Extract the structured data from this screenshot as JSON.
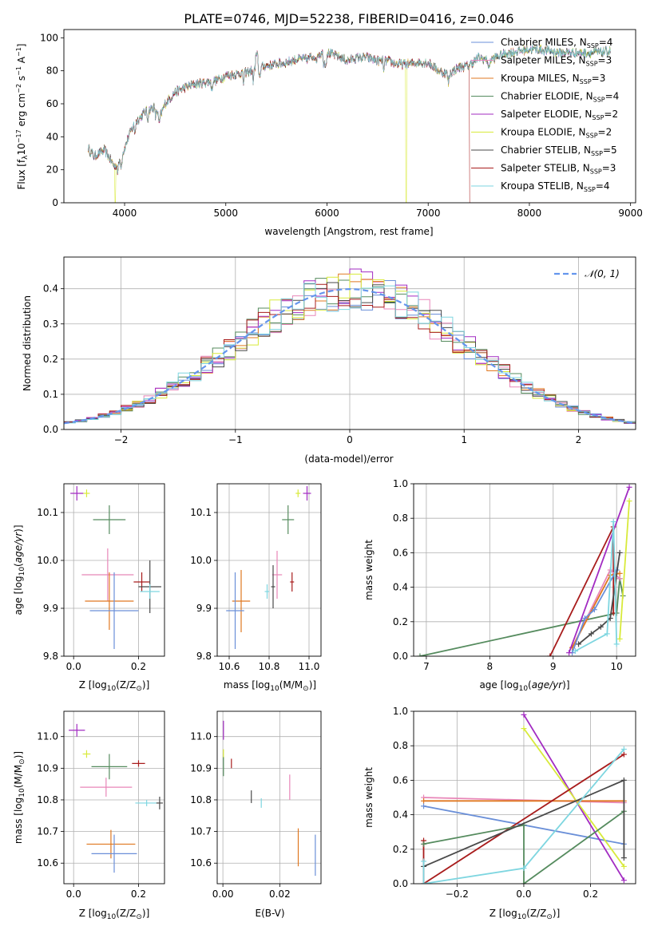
{
  "title": "PLATE=0746, MJD=52238, FIBERID=0416, z=0.046",
  "colors": {
    "chabrier_miles": "#6a8fd8",
    "salpeter_miles": "#e886b8",
    "kroupa_miles": "#e07820",
    "chabrier_elodie": "#558b5e",
    "salpeter_elodie": "#a22bc2",
    "kroupa_elodie": "#d8ea3a",
    "chabrier_stelib": "#4a4a4a",
    "salpeter_stelib": "#a81c1c",
    "kroupa_stelib": "#7ed6e0",
    "normal": "#6495ed",
    "grid": "#b0b0b0"
  },
  "chart_data": [
    {
      "type": "line",
      "name": "spectrum",
      "title": "PLATE=0746, MJD=52238, FIBERID=0416, z=0.046",
      "xlabel": "wavelength [Angstrom, rest frame]",
      "ylabel_parts": [
        "Flux [f",
        "λ",
        "10",
        "−17",
        " erg cm",
        "−2",
        " s",
        "−1",
        " A",
        "−1",
        "]"
      ],
      "xlim": [
        3400,
        9050
      ],
      "ylim": [
        0,
        105
      ],
      "xticks": [
        4000,
        5000,
        6000,
        7000,
        8000,
        9000
      ],
      "yticks": [
        0,
        20,
        40,
        60,
        80,
        100
      ],
      "legend": "upper right, no frame",
      "legend_entries": [
        {
          "label": "Chabrier MILES, N",
          "sub": "SSP",
          "suffix": "=4",
          "color": "#6a8fd8"
        },
        {
          "label": "Salpeter MILES, N",
          "sub": "SSP",
          "suffix": "=3",
          "color": "#e886b8"
        },
        {
          "label": "Kroupa MILES, N",
          "sub": "SSP",
          "suffix": "=3",
          "color": "#e07820"
        },
        {
          "label": "Chabrier ELODIE, N",
          "sub": "SSP",
          "suffix": "=4",
          "color": "#558b5e"
        },
        {
          "label": "Salpeter ELODIE, N",
          "sub": "SSP",
          "suffix": "=2",
          "color": "#a22bc2"
        },
        {
          "label": "Kroupa ELODIE, N",
          "sub": "SSP",
          "suffix": "=2",
          "color": "#d8ea3a"
        },
        {
          "label": "Chabrier STELIB, N",
          "sub": "SSP",
          "suffix": "=5",
          "color": "#4a4a4a"
        },
        {
          "label": "Salpeter STELIB, N",
          "sub": "SSP",
          "suffix": "=3",
          "color": "#a81c1c"
        },
        {
          "label": "Kroupa STELIB, N",
          "sub": "SSP",
          "suffix": "=4",
          "color": "#7ed6e0"
        }
      ],
      "continuum": [
        [
          3640,
          33
        ],
        [
          3700,
          28
        ],
        [
          3750,
          30
        ],
        [
          3800,
          32
        ],
        [
          3850,
          27
        ],
        [
          3900,
          22
        ],
        [
          3950,
          25
        ],
        [
          4000,
          33
        ],
        [
          4050,
          42
        ],
        [
          4100,
          48
        ],
        [
          4200,
          55
        ],
        [
          4300,
          58
        ],
        [
          4350,
          52
        ],
        [
          4400,
          60
        ],
        [
          4500,
          67
        ],
        [
          4600,
          70
        ],
        [
          4700,
          72
        ],
        [
          4800,
          73
        ],
        [
          4900,
          74
        ],
        [
          5000,
          77
        ],
        [
          5100,
          78
        ],
        [
          5200,
          79
        ],
        [
          5300,
          81
        ],
        [
          5400,
          83
        ],
        [
          5500,
          84
        ],
        [
          5600,
          85
        ],
        [
          5700,
          87
        ],
        [
          5800,
          87
        ],
        [
          5900,
          90
        ],
        [
          6000,
          91
        ],
        [
          6100,
          89
        ],
        [
          6200,
          86
        ],
        [
          6300,
          88
        ],
        [
          6400,
          88
        ],
        [
          6500,
          86
        ],
        [
          6600,
          86
        ],
        [
          6700,
          84
        ],
        [
          6800,
          84
        ],
        [
          6900,
          85
        ],
        [
          7000,
          85
        ],
        [
          7100,
          80
        ],
        [
          7200,
          78
        ],
        [
          7300,
          82
        ],
        [
          7400,
          83
        ],
        [
          7500,
          88
        ],
        [
          7600,
          86
        ],
        [
          7700,
          89
        ],
        [
          7800,
          91
        ],
        [
          7900,
          92
        ],
        [
          8000,
          93
        ],
        [
          8100,
          93
        ],
        [
          8200,
          92
        ],
        [
          8300,
          91
        ],
        [
          8400,
          91
        ],
        [
          8500,
          91
        ],
        [
          8600,
          91
        ],
        [
          8700,
          91
        ],
        [
          8800,
          92
        ]
      ],
      "dropouts": [
        {
          "x": 3905,
          "series": "kroupa_elodie"
        },
        {
          "x": 6780,
          "series": "kroupa_elodie"
        },
        {
          "x": 7410,
          "series": "salpeter_stelib",
          "extends_to": 7420
        }
      ]
    },
    {
      "type": "histogram",
      "name": "residuals",
      "xlabel": "(data-model)/error",
      "ylabel": "Normed distribution",
      "xlim": [
        -2.5,
        2.5
      ],
      "ylim": [
        0,
        0.49
      ],
      "xticks": [
        -2,
        -1,
        0,
        1,
        2
      ],
      "yticks": [
        0.0,
        0.1,
        0.2,
        0.3,
        0.4
      ],
      "legend": "upper right",
      "legend_label": "𝒩(0, 1)",
      "grid": true,
      "bin_width": 0.1
    },
    {
      "type": "scatter",
      "name": "age-vs-Z",
      "xlabel": "Z [log10(Z/Z⊙)]",
      "ylabel": "age  [log10(age/yr)]",
      "xlim": [
        -0.03,
        0.28
      ],
      "ylim": [
        9.8,
        10.16
      ],
      "xticks": [
        0.0,
        0.2
      ],
      "yticks": [
        9.8,
        9.9,
        10.0,
        10.1
      ],
      "grid": true,
      "points": [
        {
          "s": "salpeter_elodie",
          "x": 0.01,
          "y": 10.14,
          "xe": 0.02,
          "ye": 0.015
        },
        {
          "s": "kroupa_elodie",
          "x": 0.04,
          "y": 10.14,
          "xe": 0.01,
          "ye": 0.008
        },
        {
          "s": "chabrier_elodie",
          "x": 0.11,
          "y": 10.085,
          "xe": 0.05,
          "ye": 0.03
        },
        {
          "s": "salpeter_miles",
          "x": 0.105,
          "y": 9.97,
          "xe": 0.08,
          "ye": 0.055
        },
        {
          "s": "salpeter_stelib",
          "x": 0.21,
          "y": 9.955,
          "xe": 0.025,
          "ye": 0.02
        },
        {
          "s": "chabrier_stelib",
          "x": 0.235,
          "y": 9.945,
          "xe": 0.035,
          "ye": 0.055
        },
        {
          "s": "kroupa_stelib",
          "x": 0.235,
          "y": 9.935,
          "xe": 0.03,
          "ye": 0.015
        },
        {
          "s": "kroupa_miles",
          "x": 0.11,
          "y": 9.915,
          "xe": 0.075,
          "ye": 0.06
        },
        {
          "s": "chabrier_miles",
          "x": 0.125,
          "y": 9.895,
          "xe": 0.075,
          "ye": 0.08
        }
      ]
    },
    {
      "type": "scatter",
      "name": "age-vs-mass",
      "xlabel": "mass [log10(M/M⊙)]",
      "xlim": [
        10.54,
        11.06
      ],
      "ylim": [
        9.8,
        10.16
      ],
      "xticks": [
        10.6,
        10.8,
        11.0
      ],
      "yticks": [
        9.8,
        9.9,
        10.0,
        10.1
      ],
      "grid": true,
      "points": [
        {
          "s": "salpeter_elodie",
          "x": 10.99,
          "y": 10.14,
          "xe": 0.02,
          "ye": 0.015
        },
        {
          "s": "kroupa_elodie",
          "x": 10.945,
          "y": 10.14,
          "xe": 0.012,
          "ye": 0.008
        },
        {
          "s": "chabrier_elodie",
          "x": 10.895,
          "y": 10.085,
          "xe": 0.03,
          "ye": 0.03
        },
        {
          "s": "salpeter_miles",
          "x": 10.84,
          "y": 9.97,
          "xe": 0.025,
          "ye": 0.05
        },
        {
          "s": "salpeter_stelib",
          "x": 10.915,
          "y": 9.955,
          "xe": 0.01,
          "ye": 0.02
        },
        {
          "s": "chabrier_stelib",
          "x": 10.82,
          "y": 9.945,
          "xe": 0.01,
          "ye": 0.045
        },
        {
          "s": "kroupa_stelib",
          "x": 10.79,
          "y": 9.935,
          "xe": 0.012,
          "ye": 0.015
        },
        {
          "s": "kroupa_miles",
          "x": 10.66,
          "y": 9.915,
          "xe": 0.045,
          "ye": 0.065
        },
        {
          "s": "chabrier_miles",
          "x": 10.63,
          "y": 9.895,
          "xe": 0.045,
          "ye": 0.08
        }
      ]
    },
    {
      "type": "line",
      "name": "weight-vs-age",
      "xlabel": "age  [log10(age/yr)]",
      "ylabel": "mass weight",
      "xlim": [
        6.8,
        10.3
      ],
      "ylim": [
        0,
        1.0
      ],
      "xticks": [
        7,
        8,
        9,
        10
      ],
      "yticks": [
        0.0,
        0.2,
        0.4,
        0.6,
        0.8,
        1.0
      ],
      "grid": true,
      "series": [
        {
          "s": "chabrier_elodie",
          "pts": [
            [
              6.9,
              0.0
            ],
            [
              10.0,
              0.25
            ],
            [
              10.05,
              0.45
            ],
            [
              10.1,
              0.35
            ]
          ]
        },
        {
          "s": "salpeter_stelib",
          "pts": [
            [
              8.95,
              0.0
            ],
            [
              9.95,
              0.75
            ],
            [
              9.95,
              0.25
            ]
          ]
        },
        {
          "s": "salpeter_miles",
          "pts": [
            [
              9.3,
              0.05
            ],
            [
              9.9,
              0.5
            ],
            [
              10.05,
              0.45
            ]
          ]
        },
        {
          "s": "kroupa_miles",
          "pts": [
            [
              9.3,
              0.05
            ],
            [
              9.9,
              0.47
            ],
            [
              10.05,
              0.48
            ]
          ]
        },
        {
          "s": "chabrier_miles",
          "pts": [
            [
              9.3,
              0.02
            ],
            [
              9.5,
              0.22
            ],
            [
              9.65,
              0.27
            ],
            [
              10.0,
              0.5
            ]
          ]
        },
        {
          "s": "salpeter_elodie",
          "pts": [
            [
              9.25,
              0.02
            ],
            [
              10.2,
              0.98
            ]
          ]
        },
        {
          "s": "kroupa_elodie",
          "pts": [
            [
              10.05,
              0.1
            ],
            [
              10.2,
              0.9
            ]
          ]
        },
        {
          "s": "chabrier_stelib",
          "pts": [
            [
              9.4,
              0.07
            ],
            [
              9.6,
              0.13
            ],
            [
              9.75,
              0.17
            ],
            [
              9.9,
              0.22
            ],
            [
              10.05,
              0.6
            ]
          ]
        },
        {
          "s": "kroupa_stelib",
          "pts": [
            [
              9.35,
              0.03
            ],
            [
              9.85,
              0.13
            ],
            [
              9.95,
              0.78
            ],
            [
              10.0,
              0.07
            ]
          ]
        }
      ]
    },
    {
      "type": "scatter",
      "name": "mass-vs-Z",
      "xlabel": "Z [log10(Z/Z⊙)]",
      "ylabel": "mass [log10(M/M⊙)]",
      "xlim": [
        -0.03,
        0.28
      ],
      "ylim": [
        10.535,
        11.08
      ],
      "xticks": [
        0.0,
        0.2
      ],
      "yticks": [
        10.6,
        10.7,
        10.8,
        10.9,
        11.0
      ],
      "grid": true,
      "points": [
        {
          "s": "salpeter_elodie",
          "x": 0.01,
          "y": 11.02,
          "xe": 0.025,
          "ye": 0.02
        },
        {
          "s": "kroupa_elodie",
          "x": 0.04,
          "y": 10.945,
          "xe": 0.012,
          "ye": 0.012
        },
        {
          "s": "chabrier_elodie",
          "x": 0.11,
          "y": 10.905,
          "xe": 0.055,
          "ye": 0.04
        },
        {
          "s": "salpeter_stelib",
          "x": 0.2,
          "y": 10.915,
          "xe": 0.02,
          "ye": 0.01
        },
        {
          "s": "salpeter_miles",
          "x": 0.1,
          "y": 10.84,
          "xe": 0.08,
          "ye": 0.03
        },
        {
          "s": "kroupa_stelib",
          "x": 0.225,
          "y": 10.79,
          "xe": 0.035,
          "ye": 0.01
        },
        {
          "s": "chabrier_stelib",
          "x": 0.265,
          "y": 10.79,
          "xe": 0.01,
          "ye": 0.02
        },
        {
          "s": "kroupa_miles",
          "x": 0.115,
          "y": 10.66,
          "xe": 0.075,
          "ye": 0.045
        },
        {
          "s": "chabrier_miles",
          "x": 0.125,
          "y": 10.63,
          "xe": 0.07,
          "ye": 0.06
        }
      ]
    },
    {
      "type": "scatter",
      "name": "mass-vs-EBV",
      "xlabel": "E(B-V)",
      "xlim": [
        -0.002,
        0.0345
      ],
      "ylim": [
        10.535,
        11.08
      ],
      "xticks": [
        0.0,
        0.02
      ],
      "yticks": [
        10.6,
        10.7,
        10.8,
        10.9,
        11.0
      ],
      "grid": true,
      "points": [
        {
          "s": "salpeter_elodie",
          "x": 0.0002,
          "y": 11.02,
          "ye": 0.03
        },
        {
          "s": "kroupa_elodie",
          "x": 0.0002,
          "y": 10.945,
          "ye": 0.015
        },
        {
          "s": "chabrier_elodie",
          "x": 0.0002,
          "y": 10.905,
          "ye": 0.03
        },
        {
          "s": "salpeter_stelib",
          "x": 0.003,
          "y": 10.915,
          "ye": 0.015
        },
        {
          "s": "chabrier_stelib",
          "x": 0.01,
          "y": 10.81,
          "ye": 0.02
        },
        {
          "s": "kroupa_stelib",
          "x": 0.0135,
          "y": 10.79,
          "ye": 0.015
        },
        {
          "s": "salpeter_miles",
          "x": 0.0235,
          "y": 10.84,
          "ye": 0.04
        },
        {
          "s": "kroupa_miles",
          "x": 0.0265,
          "y": 10.65,
          "ye": 0.06
        },
        {
          "s": "chabrier_miles",
          "x": 0.0325,
          "y": 10.625,
          "ye": 0.065
        }
      ]
    },
    {
      "type": "line",
      "name": "weight-vs-Z",
      "xlabel": "Z [log10(Z/Z⊙)]",
      "ylabel": "mass weight",
      "xlim": [
        -0.33,
        0.335
      ],
      "ylim": [
        0,
        1.0
      ],
      "xticks": [
        -0.2,
        0.0,
        0.2
      ],
      "yticks": [
        0.0,
        0.2,
        0.4,
        0.6,
        0.8,
        1.0
      ],
      "grid": true,
      "series": [
        {
          "s": "salpeter_miles",
          "pts": [
            [
              -0.3,
              0.5
            ],
            [
              0.3,
              0.47
            ]
          ]
        },
        {
          "s": "kroupa_miles",
          "pts": [
            [
              -0.3,
              0.48
            ],
            [
              0.3,
              0.48
            ]
          ]
        },
        {
          "s": "chabrier_miles",
          "pts": [
            [
              -0.3,
              0.45
            ],
            [
              0.3,
              0.23
            ]
          ]
        },
        {
          "s": "salpeter_elodie",
          "pts": [
            [
              0.0,
              0.98
            ],
            [
              0.3,
              0.02
            ]
          ]
        },
        {
          "s": "kroupa_elodie",
          "pts": [
            [
              0.0,
              0.9
            ],
            [
              0.3,
              0.1
            ]
          ]
        },
        {
          "s": "salpeter_stelib",
          "pts": [
            [
              -0.3,
              0.25
            ],
            [
              -0.3,
              0.0
            ],
            [
              0.3,
              0.75
            ]
          ]
        },
        {
          "s": "chabrier_elodie",
          "pts": [
            [
              -0.3,
              0.23
            ],
            [
              0.0,
              0.34
            ],
            [
              0.0,
              0.0
            ],
            [
              0.3,
              0.42
            ]
          ]
        },
        {
          "s": "chabrier_stelib",
          "pts": [
            [
              -0.3,
              0.1
            ],
            [
              0.3,
              0.6
            ],
            [
              0.3,
              0.15
            ]
          ]
        },
        {
          "s": "kroupa_stelib",
          "pts": [
            [
              -0.3,
              0.13
            ],
            [
              -0.3,
              0.0
            ],
            [
              0.0,
              0.09
            ],
            [
              0.3,
              0.78
            ]
          ]
        }
      ]
    }
  ]
}
